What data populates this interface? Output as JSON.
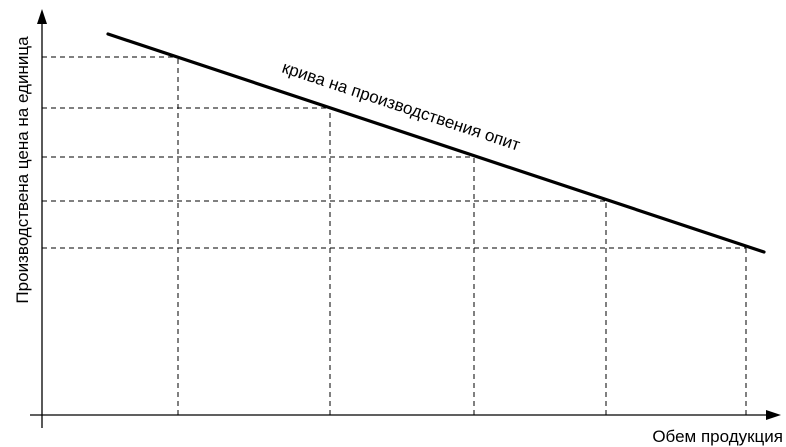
{
  "diagram": {
    "y_axis_label": "Производствена цена на единица",
    "x_axis_label": "Обем продукция",
    "curve_label": "крива на производствения опит",
    "curve_points": [
      {
        "x": 1,
        "y": 6.3
      },
      {
        "x": 2,
        "y": 5.1
      },
      {
        "x": 3,
        "y": 4.2
      },
      {
        "x": 4,
        "y": 3.3
      },
      {
        "x": 5,
        "y": 2.4
      }
    ]
  }
}
